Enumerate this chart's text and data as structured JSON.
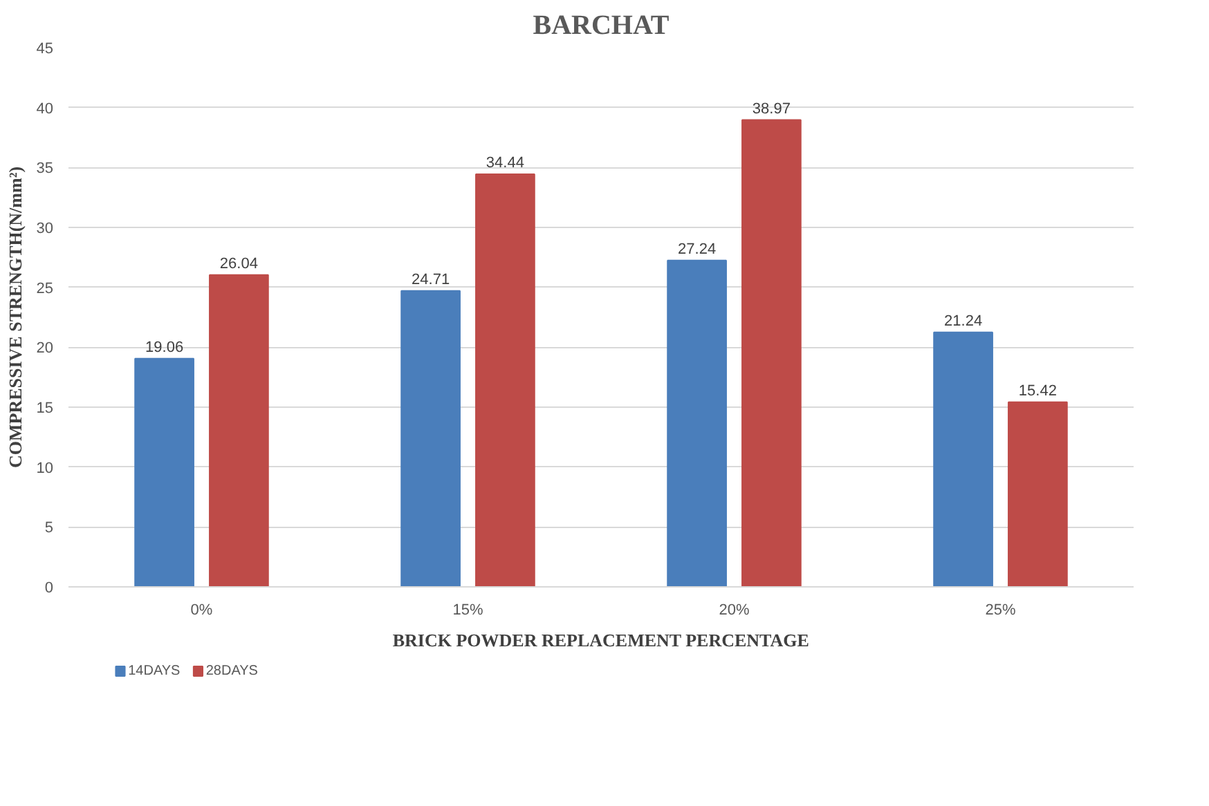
{
  "chart_data": {
    "type": "bar",
    "title": "BARCHAT",
    "xlabel": "BRICK POWDER REPLACEMENT PERCENTAGE",
    "ylabel": "COMPRESSIVE STRENGTH(N/mm²)",
    "categories": [
      "0%",
      "15%",
      "20%",
      "25%"
    ],
    "series": [
      {
        "name": "14DAYS",
        "color": "#4a7ebb",
        "values": [
          19.06,
          24.71,
          27.24,
          21.24
        ]
      },
      {
        "name": "28DAYS",
        "color": "#be4b48",
        "values": [
          26.04,
          34.44,
          38.97,
          15.42
        ]
      }
    ],
    "ylim": [
      0,
      45
    ],
    "yticks": [
      0,
      5,
      10,
      15,
      20,
      25,
      30,
      35,
      40,
      45
    ],
    "grid": "y",
    "legend": "bottom left",
    "data_labels": true
  }
}
